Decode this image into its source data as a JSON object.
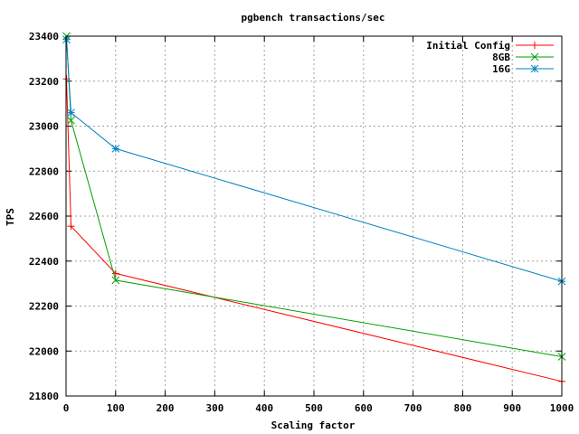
{
  "chart_data": {
    "type": "line",
    "title": "pgbench transactions/sec",
    "xlabel": "Scaling factor",
    "ylabel": "TPS",
    "xlim": [
      0,
      1000
    ],
    "ylim": [
      21800,
      23400
    ],
    "xticks": [
      0,
      100,
      200,
      300,
      400,
      500,
      600,
      700,
      800,
      900,
      1000
    ],
    "yticks": [
      21800,
      22000,
      22200,
      22400,
      22600,
      22800,
      23000,
      23200,
      23400
    ],
    "grid": true,
    "legend_position": "top-right",
    "series": [
      {
        "name": "Initial Config",
        "color": "#ff0000",
        "marker": "plus",
        "x": [
          1,
          10,
          100,
          1000
        ],
        "y": [
          23210,
          22555,
          22345,
          21865
        ]
      },
      {
        "name": "8GB",
        "color": "#00a000",
        "marker": "cross",
        "x": [
          1,
          10,
          100,
          1000
        ],
        "y": [
          23400,
          23025,
          22315,
          21975
        ]
      },
      {
        "name": "16G",
        "color": "#0080c0",
        "marker": "star",
        "x": [
          1,
          10,
          100,
          1000
        ],
        "y": [
          23385,
          23060,
          22900,
          22310
        ]
      }
    ]
  }
}
